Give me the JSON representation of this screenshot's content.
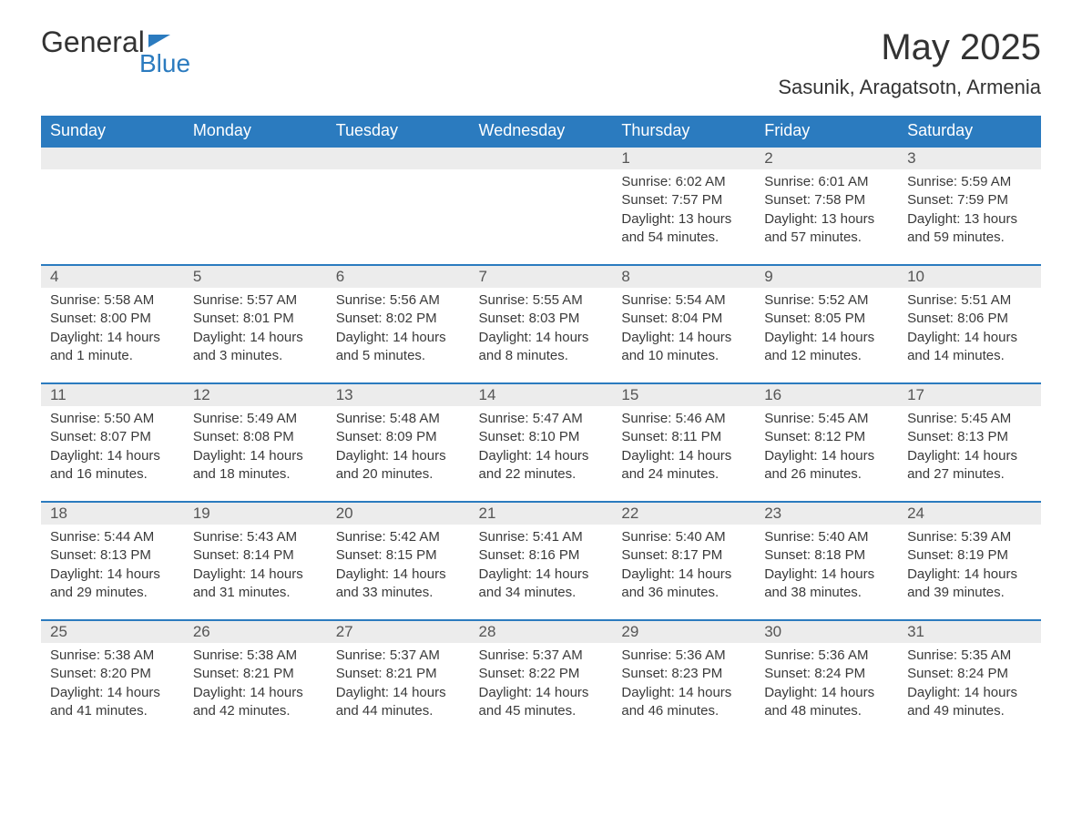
{
  "logo": {
    "word1": "General",
    "word2": "Blue"
  },
  "title": {
    "month": "May 2025",
    "location": "Sasunik, Aragatsotn, Armenia"
  },
  "colors": {
    "header_bg": "#2b7bbf",
    "header_text": "#ffffff",
    "daynum_bg": "#ececec",
    "daynum_border": "#2b7bbf",
    "body_text": "#3a3a3a",
    "page_bg": "#ffffff"
  },
  "typography": {
    "title_fontsize": 40,
    "location_fontsize": 22,
    "header_fontsize": 18,
    "daynum_fontsize": 17,
    "body_fontsize": 15
  },
  "weekdays": [
    "Sunday",
    "Monday",
    "Tuesday",
    "Wednesday",
    "Thursday",
    "Friday",
    "Saturday"
  ],
  "weeks": [
    [
      null,
      null,
      null,
      null,
      {
        "d": "1",
        "sr": "Sunrise: 6:02 AM",
        "ss": "Sunset: 7:57 PM",
        "dl1": "Daylight: 13 hours",
        "dl2": "and 54 minutes."
      },
      {
        "d": "2",
        "sr": "Sunrise: 6:01 AM",
        "ss": "Sunset: 7:58 PM",
        "dl1": "Daylight: 13 hours",
        "dl2": "and 57 minutes."
      },
      {
        "d": "3",
        "sr": "Sunrise: 5:59 AM",
        "ss": "Sunset: 7:59 PM",
        "dl1": "Daylight: 13 hours",
        "dl2": "and 59 minutes."
      }
    ],
    [
      {
        "d": "4",
        "sr": "Sunrise: 5:58 AM",
        "ss": "Sunset: 8:00 PM",
        "dl1": "Daylight: 14 hours",
        "dl2": "and 1 minute."
      },
      {
        "d": "5",
        "sr": "Sunrise: 5:57 AM",
        "ss": "Sunset: 8:01 PM",
        "dl1": "Daylight: 14 hours",
        "dl2": "and 3 minutes."
      },
      {
        "d": "6",
        "sr": "Sunrise: 5:56 AM",
        "ss": "Sunset: 8:02 PM",
        "dl1": "Daylight: 14 hours",
        "dl2": "and 5 minutes."
      },
      {
        "d": "7",
        "sr": "Sunrise: 5:55 AM",
        "ss": "Sunset: 8:03 PM",
        "dl1": "Daylight: 14 hours",
        "dl2": "and 8 minutes."
      },
      {
        "d": "8",
        "sr": "Sunrise: 5:54 AM",
        "ss": "Sunset: 8:04 PM",
        "dl1": "Daylight: 14 hours",
        "dl2": "and 10 minutes."
      },
      {
        "d": "9",
        "sr": "Sunrise: 5:52 AM",
        "ss": "Sunset: 8:05 PM",
        "dl1": "Daylight: 14 hours",
        "dl2": "and 12 minutes."
      },
      {
        "d": "10",
        "sr": "Sunrise: 5:51 AM",
        "ss": "Sunset: 8:06 PM",
        "dl1": "Daylight: 14 hours",
        "dl2": "and 14 minutes."
      }
    ],
    [
      {
        "d": "11",
        "sr": "Sunrise: 5:50 AM",
        "ss": "Sunset: 8:07 PM",
        "dl1": "Daylight: 14 hours",
        "dl2": "and 16 minutes."
      },
      {
        "d": "12",
        "sr": "Sunrise: 5:49 AM",
        "ss": "Sunset: 8:08 PM",
        "dl1": "Daylight: 14 hours",
        "dl2": "and 18 minutes."
      },
      {
        "d": "13",
        "sr": "Sunrise: 5:48 AM",
        "ss": "Sunset: 8:09 PM",
        "dl1": "Daylight: 14 hours",
        "dl2": "and 20 minutes."
      },
      {
        "d": "14",
        "sr": "Sunrise: 5:47 AM",
        "ss": "Sunset: 8:10 PM",
        "dl1": "Daylight: 14 hours",
        "dl2": "and 22 minutes."
      },
      {
        "d": "15",
        "sr": "Sunrise: 5:46 AM",
        "ss": "Sunset: 8:11 PM",
        "dl1": "Daylight: 14 hours",
        "dl2": "and 24 minutes."
      },
      {
        "d": "16",
        "sr": "Sunrise: 5:45 AM",
        "ss": "Sunset: 8:12 PM",
        "dl1": "Daylight: 14 hours",
        "dl2": "and 26 minutes."
      },
      {
        "d": "17",
        "sr": "Sunrise: 5:45 AM",
        "ss": "Sunset: 8:13 PM",
        "dl1": "Daylight: 14 hours",
        "dl2": "and 27 minutes."
      }
    ],
    [
      {
        "d": "18",
        "sr": "Sunrise: 5:44 AM",
        "ss": "Sunset: 8:13 PM",
        "dl1": "Daylight: 14 hours",
        "dl2": "and 29 minutes."
      },
      {
        "d": "19",
        "sr": "Sunrise: 5:43 AM",
        "ss": "Sunset: 8:14 PM",
        "dl1": "Daylight: 14 hours",
        "dl2": "and 31 minutes."
      },
      {
        "d": "20",
        "sr": "Sunrise: 5:42 AM",
        "ss": "Sunset: 8:15 PM",
        "dl1": "Daylight: 14 hours",
        "dl2": "and 33 minutes."
      },
      {
        "d": "21",
        "sr": "Sunrise: 5:41 AM",
        "ss": "Sunset: 8:16 PM",
        "dl1": "Daylight: 14 hours",
        "dl2": "and 34 minutes."
      },
      {
        "d": "22",
        "sr": "Sunrise: 5:40 AM",
        "ss": "Sunset: 8:17 PM",
        "dl1": "Daylight: 14 hours",
        "dl2": "and 36 minutes."
      },
      {
        "d": "23",
        "sr": "Sunrise: 5:40 AM",
        "ss": "Sunset: 8:18 PM",
        "dl1": "Daylight: 14 hours",
        "dl2": "and 38 minutes."
      },
      {
        "d": "24",
        "sr": "Sunrise: 5:39 AM",
        "ss": "Sunset: 8:19 PM",
        "dl1": "Daylight: 14 hours",
        "dl2": "and 39 minutes."
      }
    ],
    [
      {
        "d": "25",
        "sr": "Sunrise: 5:38 AM",
        "ss": "Sunset: 8:20 PM",
        "dl1": "Daylight: 14 hours",
        "dl2": "and 41 minutes."
      },
      {
        "d": "26",
        "sr": "Sunrise: 5:38 AM",
        "ss": "Sunset: 8:21 PM",
        "dl1": "Daylight: 14 hours",
        "dl2": "and 42 minutes."
      },
      {
        "d": "27",
        "sr": "Sunrise: 5:37 AM",
        "ss": "Sunset: 8:21 PM",
        "dl1": "Daylight: 14 hours",
        "dl2": "and 44 minutes."
      },
      {
        "d": "28",
        "sr": "Sunrise: 5:37 AM",
        "ss": "Sunset: 8:22 PM",
        "dl1": "Daylight: 14 hours",
        "dl2": "and 45 minutes."
      },
      {
        "d": "29",
        "sr": "Sunrise: 5:36 AM",
        "ss": "Sunset: 8:23 PM",
        "dl1": "Daylight: 14 hours",
        "dl2": "and 46 minutes."
      },
      {
        "d": "30",
        "sr": "Sunrise: 5:36 AM",
        "ss": "Sunset: 8:24 PM",
        "dl1": "Daylight: 14 hours",
        "dl2": "and 48 minutes."
      },
      {
        "d": "31",
        "sr": "Sunrise: 5:35 AM",
        "ss": "Sunset: 8:24 PM",
        "dl1": "Daylight: 14 hours",
        "dl2": "and 49 minutes."
      }
    ]
  ]
}
